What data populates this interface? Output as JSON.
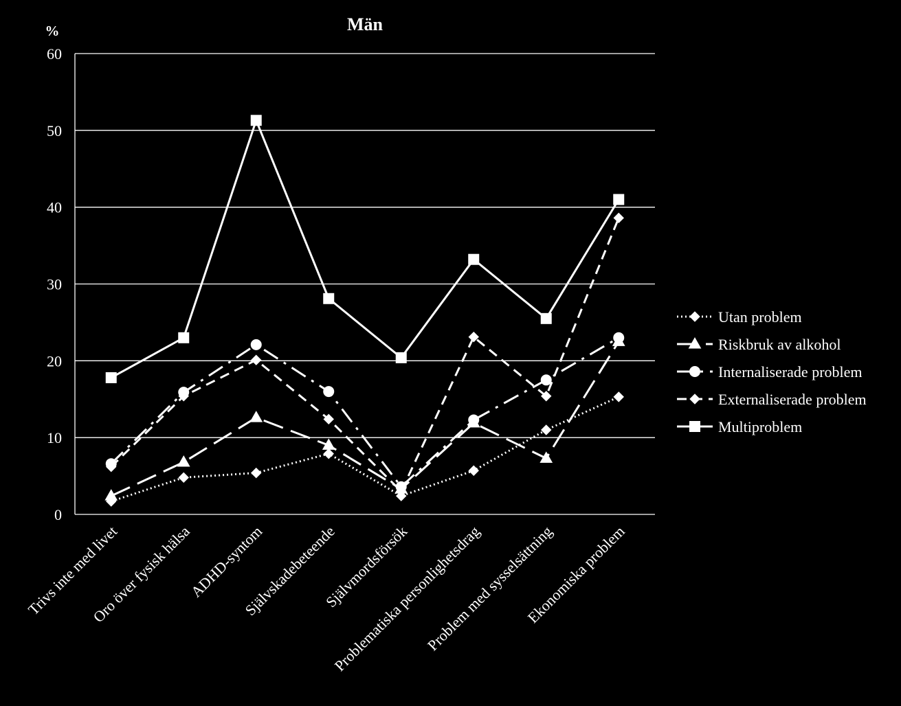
{
  "chart_data": {
    "type": "line",
    "title": "Män",
    "ylabel": "%",
    "xlabel": "",
    "ylim": [
      0,
      60
    ],
    "yticks": [
      0,
      10,
      20,
      30,
      40,
      50,
      60
    ],
    "grid": "horizontal",
    "legend_position": "right",
    "categories": [
      "Trivs inte med livet",
      "Oro över fysisk hälsa",
      "ADHD-syntom",
      "Självskadebeteende",
      "Självmordsförsök",
      "Problematiska personlighetsdrag",
      "Problem med sysselsättning",
      "Ekonomiska problem"
    ],
    "series": [
      {
        "name": "Utan problem",
        "marker": "diamond",
        "dash": "dotted",
        "values": [
          1.7,
          4.8,
          5.4,
          7.9,
          2.4,
          5.7,
          11.0,
          15.3
        ]
      },
      {
        "name": "Riskbruk av alkohol",
        "marker": "triangle",
        "dash": "longdash",
        "values": [
          2.4,
          6.8,
          12.6,
          9.0,
          3.3,
          11.9,
          7.3,
          22.5
        ]
      },
      {
        "name": "Internaliserade problem",
        "marker": "circle",
        "dash": "dashdot",
        "values": [
          6.6,
          15.9,
          22.1,
          16.0,
          3.6,
          12.3,
          17.5,
          23.0
        ]
      },
      {
        "name": "Externaliserade problem",
        "marker": "diamond",
        "dash": "dashed",
        "values": [
          6.2,
          15.4,
          20.1,
          12.4,
          3.0,
          23.1,
          15.4,
          38.6
        ]
      },
      {
        "name": "Multiproblem",
        "marker": "square",
        "dash": "solid",
        "values": [
          17.8,
          23.0,
          51.3,
          28.1,
          20.4,
          33.2,
          25.5,
          41.0
        ]
      }
    ],
    "colors": {
      "background": "#000000",
      "foreground": "#ffffff"
    }
  }
}
